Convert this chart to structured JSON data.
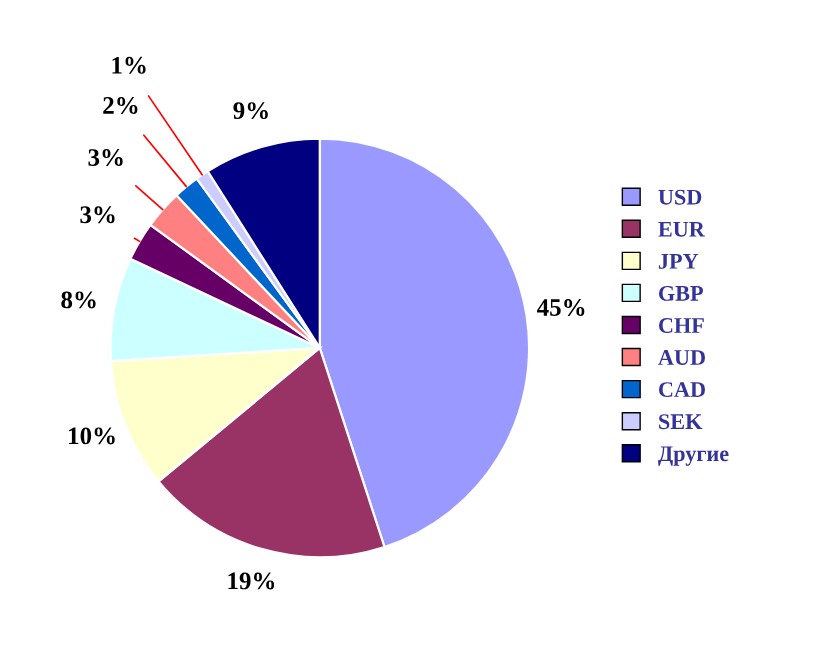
{
  "chart_data": {
    "type": "pie",
    "categories": [
      "USD",
      "EUR",
      "JPY",
      "GBP",
      "CHF",
      "AUD",
      "CAD",
      "SEK",
      "Другие"
    ],
    "values": [
      45,
      19,
      10,
      8,
      3,
      3,
      2,
      1,
      9
    ],
    "colors": [
      "#9999ff",
      "#993366",
      "#ffffcc",
      "#ccffff",
      "#660066",
      "#ff8080",
      "#0066cc",
      "#ccccff",
      "#000080"
    ],
    "value_labels": [
      "45%",
      "19%",
      "10%",
      "8%",
      "3%",
      "3%",
      "2%",
      "1%",
      "9%"
    ],
    "legend": "right"
  }
}
